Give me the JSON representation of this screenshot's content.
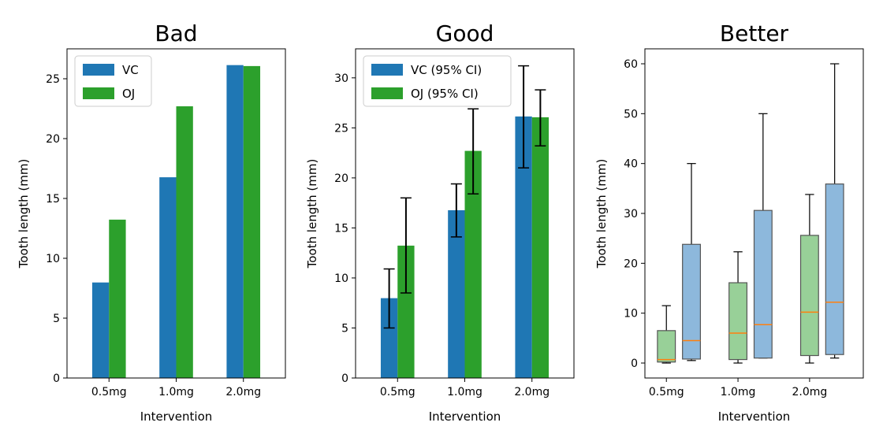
{
  "chart_data": [
    {
      "type": "bar",
      "title": "Bad",
      "xlabel": "Intervention",
      "ylabel": "Tooth length (mm)",
      "categories": [
        "0.5mg",
        "1.0mg",
        "2.0mg"
      ],
      "ylim": [
        0,
        27.5
      ],
      "yticks": [
        0,
        5,
        10,
        15,
        20,
        25
      ],
      "legend": "top-left",
      "series": [
        {
          "name": "VC",
          "values": [
            7.98,
            16.77,
            26.14
          ],
          "color": "#1f77b4"
        },
        {
          "name": "OJ",
          "values": [
            13.23,
            22.7,
            26.06
          ],
          "color": "#2ca02c"
        }
      ]
    },
    {
      "type": "bar",
      "title": "Good",
      "xlabel": "Intervention",
      "ylabel": "Tooth length (mm)",
      "categories": [
        "0.5mg",
        "1.0mg",
        "2.0mg"
      ],
      "ylim": [
        0,
        32.9
      ],
      "yticks": [
        0,
        5,
        10,
        15,
        20,
        25,
        30
      ],
      "legend": "top-left",
      "series": [
        {
          "name": "VC (95% CI)",
          "values": [
            7.98,
            16.77,
            26.14
          ],
          "err_low": [
            5.0,
            14.1,
            21.0
          ],
          "err_high": [
            10.9,
            19.4,
            31.2
          ],
          "color": "#1f77b4"
        },
        {
          "name": "OJ (95% CI)",
          "values": [
            13.23,
            22.7,
            26.06
          ],
          "err_low": [
            8.5,
            18.4,
            23.2
          ],
          "err_high": [
            18.0,
            26.9,
            28.8
          ],
          "color": "#2ca02c"
        }
      ]
    },
    {
      "type": "box",
      "title": "Better",
      "xlabel": "Intervention",
      "ylabel": "Tooth length (mm)",
      "categories": [
        "0.5mg",
        "1.0mg",
        "2.0mg"
      ],
      "ylim": [
        -3,
        63
      ],
      "yticks": [
        0,
        10,
        20,
        30,
        40,
        50,
        60
      ],
      "median_color": "#ff7f0e",
      "series": [
        {
          "color": "#98d098",
          "boxes": [
            {
              "whislo": 0,
              "q1": 0.2,
              "med": 0.7,
              "q3": 6.5,
              "whishi": 11.5
            },
            {
              "whislo": 0,
              "q1": 0.7,
              "med": 6.0,
              "q3": 16.1,
              "whishi": 22.3
            },
            {
              "whislo": 0,
              "q1": 1.5,
              "med": 10.2,
              "q3": 25.6,
              "whishi": 33.8
            }
          ]
        },
        {
          "color": "#8db8dc",
          "boxes": [
            {
              "whislo": 0.5,
              "q1": 0.8,
              "med": 4.5,
              "q3": 23.8,
              "whishi": 40.0
            },
            {
              "whislo": 1.0,
              "q1": 1.0,
              "med": 7.7,
              "q3": 30.6,
              "whishi": 50.0
            },
            {
              "whislo": 1.0,
              "q1": 1.7,
              "med": 12.2,
              "q3": 35.9,
              "whishi": 60.0
            }
          ]
        }
      ]
    }
  ]
}
